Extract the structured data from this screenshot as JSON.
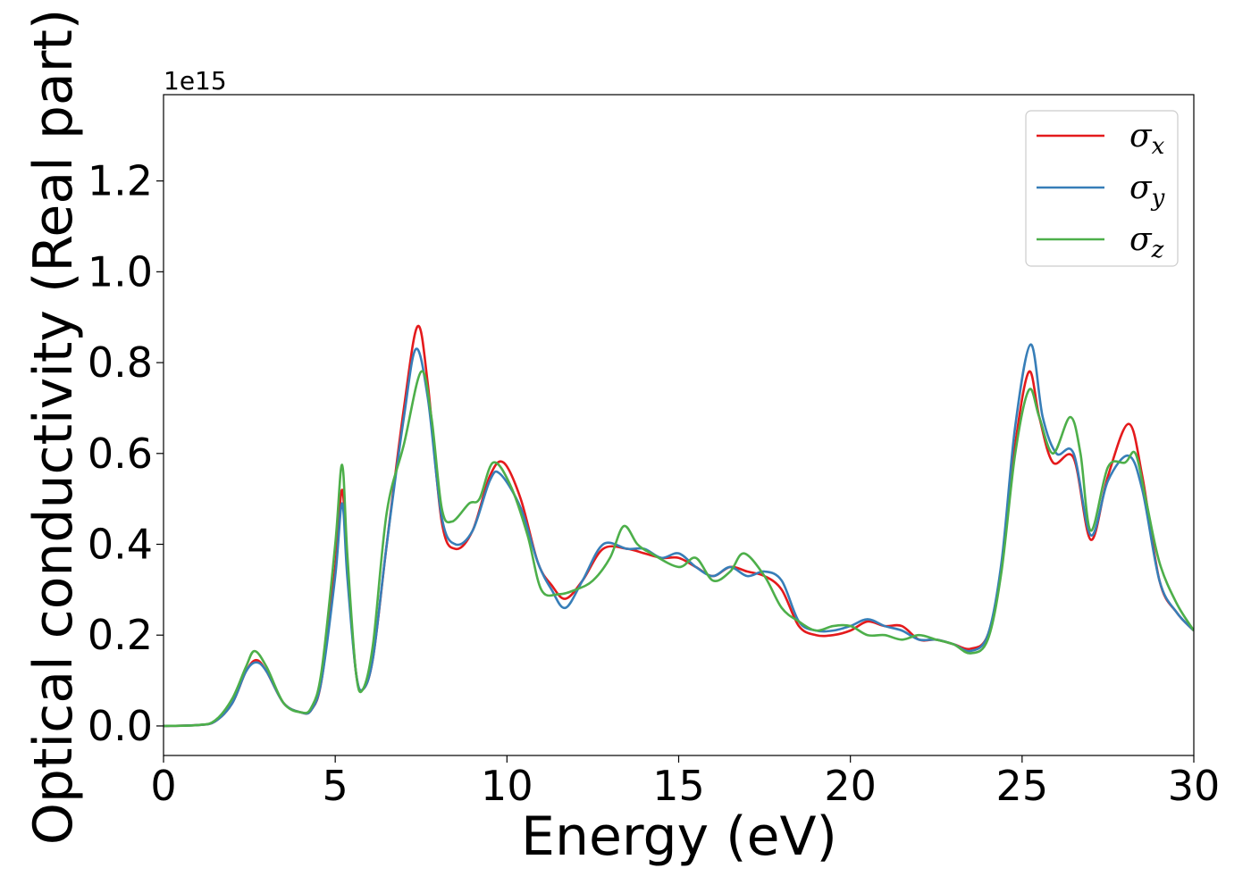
{
  "chart_data": {
    "type": "line",
    "title": "",
    "xlabel": "Energy (eV)",
    "ylabel": "Optical conductivity (Real part)",
    "y_offset_label": "1e15",
    "y_scale": 1000000000000000.0,
    "xlim": [
      0,
      30
    ],
    "ylim": [
      -0.065,
      1.39
    ],
    "x_ticks": [
      0,
      5,
      10,
      15,
      20,
      25,
      30
    ],
    "x_tick_labels": [
      "0",
      "5",
      "10",
      "15",
      "20",
      "25",
      "30"
    ],
    "y_ticks": [
      0.0,
      0.2,
      0.4,
      0.6,
      0.8,
      1.0,
      1.2
    ],
    "y_tick_labels": [
      "0.0",
      "0.2",
      "0.4",
      "0.6",
      "0.8",
      "1.0",
      "1.2"
    ],
    "grid": false,
    "legend_position": "top-right",
    "series": [
      {
        "name": "σx",
        "symbol": "σ",
        "subscript": "x",
        "color": "#e41a1c",
        "points": [
          [
            0,
            0
          ],
          [
            1,
            0.002
          ],
          [
            1.5,
            0.01
          ],
          [
            2,
            0.05
          ],
          [
            2.4,
            0.12
          ],
          [
            2.7,
            0.145
          ],
          [
            3,
            0.12
          ],
          [
            3.5,
            0.05
          ],
          [
            4,
            0.03
          ],
          [
            4.3,
            0.035
          ],
          [
            4.6,
            0.1
          ],
          [
            5,
            0.35
          ],
          [
            5.2,
            0.52
          ],
          [
            5.35,
            0.35
          ],
          [
            5.6,
            0.12
          ],
          [
            5.8,
            0.08
          ],
          [
            6.1,
            0.15
          ],
          [
            6.5,
            0.4
          ],
          [
            7,
            0.7
          ],
          [
            7.4,
            0.88
          ],
          [
            7.7,
            0.75
          ],
          [
            8.1,
            0.45
          ],
          [
            8.5,
            0.39
          ],
          [
            9,
            0.43
          ],
          [
            9.5,
            0.55
          ],
          [
            9.9,
            0.58
          ],
          [
            10.4,
            0.5
          ],
          [
            10.9,
            0.36
          ],
          [
            11.3,
            0.31
          ],
          [
            11.7,
            0.28
          ],
          [
            12.2,
            0.32
          ],
          [
            12.8,
            0.39
          ],
          [
            13.5,
            0.39
          ],
          [
            14,
            0.38
          ],
          [
            14.5,
            0.37
          ],
          [
            15,
            0.37
          ],
          [
            15.5,
            0.35
          ],
          [
            16,
            0.33
          ],
          [
            16.5,
            0.35
          ],
          [
            17,
            0.34
          ],
          [
            17.5,
            0.33
          ],
          [
            18,
            0.3
          ],
          [
            18.5,
            0.22
          ],
          [
            19,
            0.2
          ],
          [
            19.5,
            0.2
          ],
          [
            20,
            0.21
          ],
          [
            20.5,
            0.23
          ],
          [
            21,
            0.22
          ],
          [
            21.5,
            0.22
          ],
          [
            22,
            0.19
          ],
          [
            22.5,
            0.19
          ],
          [
            23,
            0.18
          ],
          [
            23.5,
            0.17
          ],
          [
            24,
            0.2
          ],
          [
            24.4,
            0.35
          ],
          [
            24.8,
            0.62
          ],
          [
            25.2,
            0.78
          ],
          [
            25.5,
            0.68
          ],
          [
            25.9,
            0.58
          ],
          [
            26.5,
            0.59
          ],
          [
            27,
            0.41
          ],
          [
            27.5,
            0.55
          ],
          [
            28.1,
            0.665
          ],
          [
            28.5,
            0.55
          ],
          [
            29,
            0.32
          ],
          [
            29.5,
            0.25
          ],
          [
            30,
            0.21
          ]
        ]
      },
      {
        "name": "σy",
        "symbol": "σ",
        "subscript": "y",
        "color": "#377eb8",
        "points": [
          [
            0,
            0
          ],
          [
            1,
            0.002
          ],
          [
            1.5,
            0.01
          ],
          [
            2,
            0.05
          ],
          [
            2.4,
            0.12
          ],
          [
            2.7,
            0.14
          ],
          [
            3,
            0.12
          ],
          [
            3.5,
            0.05
          ],
          [
            4,
            0.03
          ],
          [
            4.3,
            0.035
          ],
          [
            4.6,
            0.1
          ],
          [
            5,
            0.33
          ],
          [
            5.2,
            0.49
          ],
          [
            5.35,
            0.33
          ],
          [
            5.6,
            0.12
          ],
          [
            5.8,
            0.08
          ],
          [
            6.1,
            0.15
          ],
          [
            6.5,
            0.4
          ],
          [
            7,
            0.68
          ],
          [
            7.35,
            0.83
          ],
          [
            7.7,
            0.72
          ],
          [
            8.1,
            0.46
          ],
          [
            8.5,
            0.4
          ],
          [
            9,
            0.43
          ],
          [
            9.5,
            0.54
          ],
          [
            9.8,
            0.555
          ],
          [
            10.4,
            0.48
          ],
          [
            10.9,
            0.36
          ],
          [
            11.3,
            0.3
          ],
          [
            11.7,
            0.26
          ],
          [
            12.2,
            0.32
          ],
          [
            12.8,
            0.4
          ],
          [
            13.5,
            0.39
          ],
          [
            14,
            0.39
          ],
          [
            14.5,
            0.37
          ],
          [
            15,
            0.38
          ],
          [
            15.5,
            0.35
          ],
          [
            16,
            0.33
          ],
          [
            16.5,
            0.35
          ],
          [
            17,
            0.33
          ],
          [
            17.5,
            0.34
          ],
          [
            18,
            0.32
          ],
          [
            18.5,
            0.23
          ],
          [
            19,
            0.21
          ],
          [
            19.5,
            0.21
          ],
          [
            20,
            0.22
          ],
          [
            20.5,
            0.235
          ],
          [
            21,
            0.22
          ],
          [
            21.5,
            0.21
          ],
          [
            22,
            0.19
          ],
          [
            22.5,
            0.19
          ],
          [
            23,
            0.18
          ],
          [
            23.5,
            0.165
          ],
          [
            24,
            0.2
          ],
          [
            24.4,
            0.36
          ],
          [
            24.8,
            0.66
          ],
          [
            25.25,
            0.84
          ],
          [
            25.6,
            0.68
          ],
          [
            26,
            0.6
          ],
          [
            26.5,
            0.6
          ],
          [
            27,
            0.42
          ],
          [
            27.5,
            0.54
          ],
          [
            28.1,
            0.595
          ],
          [
            28.5,
            0.52
          ],
          [
            29,
            0.32
          ],
          [
            29.5,
            0.25
          ],
          [
            30,
            0.21
          ]
        ]
      },
      {
        "name": "σz",
        "symbol": "σ",
        "subscript": "z",
        "color": "#4daf4a",
        "points": [
          [
            0,
            0
          ],
          [
            1,
            0.002
          ],
          [
            1.5,
            0.012
          ],
          [
            2,
            0.06
          ],
          [
            2.4,
            0.13
          ],
          [
            2.65,
            0.165
          ],
          [
            3,
            0.13
          ],
          [
            3.5,
            0.05
          ],
          [
            4,
            0.03
          ],
          [
            4.3,
            0.04
          ],
          [
            4.6,
            0.12
          ],
          [
            5,
            0.4
          ],
          [
            5.2,
            0.575
          ],
          [
            5.35,
            0.38
          ],
          [
            5.6,
            0.12
          ],
          [
            5.8,
            0.08
          ],
          [
            6.1,
            0.18
          ],
          [
            6.5,
            0.47
          ],
          [
            7,
            0.62
          ],
          [
            7.5,
            0.78
          ],
          [
            7.8,
            0.68
          ],
          [
            8.1,
            0.48
          ],
          [
            8.4,
            0.45
          ],
          [
            8.9,
            0.49
          ],
          [
            9.2,
            0.5
          ],
          [
            9.6,
            0.58
          ],
          [
            10.1,
            0.53
          ],
          [
            10.6,
            0.42
          ],
          [
            11,
            0.3
          ],
          [
            11.5,
            0.29
          ],
          [
            12,
            0.3
          ],
          [
            12.5,
            0.32
          ],
          [
            13,
            0.37
          ],
          [
            13.4,
            0.44
          ],
          [
            13.8,
            0.4
          ],
          [
            14.2,
            0.38
          ],
          [
            15,
            0.35
          ],
          [
            15.5,
            0.37
          ],
          [
            16,
            0.32
          ],
          [
            16.5,
            0.34
          ],
          [
            16.9,
            0.38
          ],
          [
            17.5,
            0.33
          ],
          [
            18,
            0.26
          ],
          [
            18.5,
            0.23
          ],
          [
            19,
            0.21
          ],
          [
            19.5,
            0.22
          ],
          [
            20,
            0.22
          ],
          [
            20.5,
            0.2
          ],
          [
            21,
            0.2
          ],
          [
            21.5,
            0.19
          ],
          [
            22,
            0.2
          ],
          [
            22.5,
            0.19
          ],
          [
            23,
            0.18
          ],
          [
            23.5,
            0.16
          ],
          [
            24,
            0.19
          ],
          [
            24.4,
            0.34
          ],
          [
            24.8,
            0.6
          ],
          [
            25.2,
            0.74
          ],
          [
            25.5,
            0.68
          ],
          [
            25.9,
            0.6
          ],
          [
            26.4,
            0.68
          ],
          [
            26.7,
            0.6
          ],
          [
            27,
            0.43
          ],
          [
            27.5,
            0.57
          ],
          [
            28,
            0.58
          ],
          [
            28.3,
            0.6
          ],
          [
            28.6,
            0.5
          ],
          [
            29,
            0.36
          ],
          [
            29.5,
            0.27
          ],
          [
            30,
            0.21
          ]
        ]
      }
    ]
  }
}
